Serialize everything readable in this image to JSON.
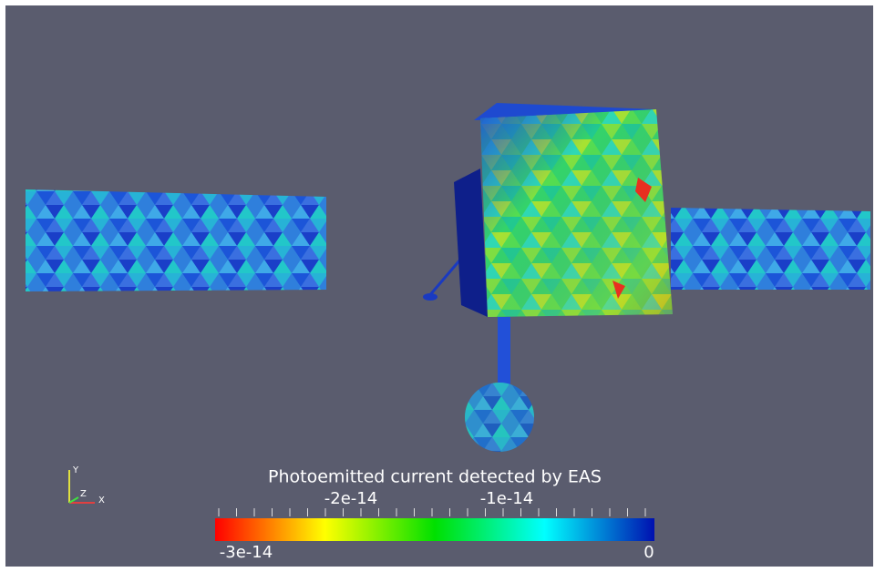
{
  "colorbar": {
    "title": "Photoemitted current detected by EAS",
    "upper_labels": [
      "-2e-14",
      "-1e-14"
    ],
    "lower_labels": [
      "-3e-14",
      "0"
    ]
  },
  "axes": {
    "y": "Y",
    "z": "Z",
    "x": "X"
  }
}
